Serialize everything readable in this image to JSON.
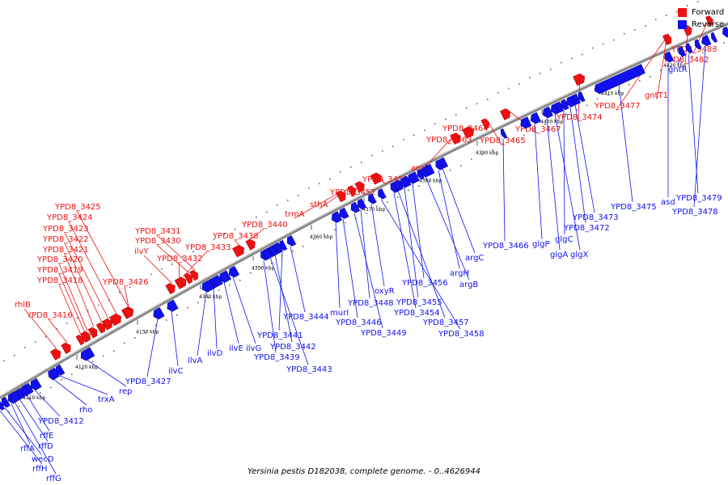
{
  "colors": {
    "forward": "#ee1111",
    "reverse": "#1111ee",
    "backbone": "#888888"
  },
  "legend": {
    "forward": "Forward",
    "reverse": "Reverse"
  },
  "caption": "Yersinia pestis D182038, complete genome. - 0..4626944",
  "ticks": [
    "4110 kbp",
    "4120 kbp",
    "4130 kbp",
    "4340 kbp",
    "4350 kbp",
    "4360 kbp",
    "4370 kbp",
    "4380 kbp",
    "4390 kbp",
    "4400 kbp",
    "4410 kbp",
    "4420 kbp"
  ],
  "forward_labels": [
    "YPD8_3483",
    "YPD8_3482",
    "gntT1",
    "YPD8_3477",
    "YPD8_3474",
    "YPD8_3467",
    "YPD8_3464",
    "YPD8_3465",
    "YPD8_3463",
    "argE",
    "YPD8_3453",
    "YPD8_3452",
    "sthA",
    "trmA",
    "YPD8_3440",
    "YPD8_3438",
    "YPD8_3431",
    "YPD8_3430",
    "YPD8_3433",
    "ilvY",
    "YPD8_3432",
    "YPD8_3425",
    "YPD8_3424",
    "YPD8_3423",
    "YPD8_3422",
    "YPD8_3421",
    "YPD8_3420",
    "YPD8_3419",
    "YPD8_3418",
    "YPD8_3426",
    "rhlB",
    "YPD8_3416"
  ],
  "reverse_labels": [
    "gntR",
    "asd",
    "YPD8_3479",
    "YPD8_3478",
    "YPD8_3475",
    "YPD8_3473",
    "YPD8_3472",
    "glgC",
    "glgX",
    "glgA",
    "glgP",
    "YPD8_3466",
    "argC",
    "argH",
    "argB",
    "YPD8_3456",
    "YPD8_3455",
    "YPD8_3454",
    "YPD8_3457",
    "YPD8_3458",
    "oxyR",
    "YPD8_3448",
    "YPD8_3446",
    "YPD8_3449",
    "murI",
    "YPD8_3444",
    "YPD8_3441",
    "YPD8_3442",
    "YPD8_3439",
    "YPD8_3443",
    "ilvG",
    "ilvE",
    "ilvD",
    "ilvA",
    "ilvC",
    "YPD8_3427",
    "rep",
    "trxA",
    "rho",
    "YPD8_3412",
    "rffE",
    "rffD",
    "rffA",
    "wecD",
    "rffH",
    "rffG"
  ]
}
